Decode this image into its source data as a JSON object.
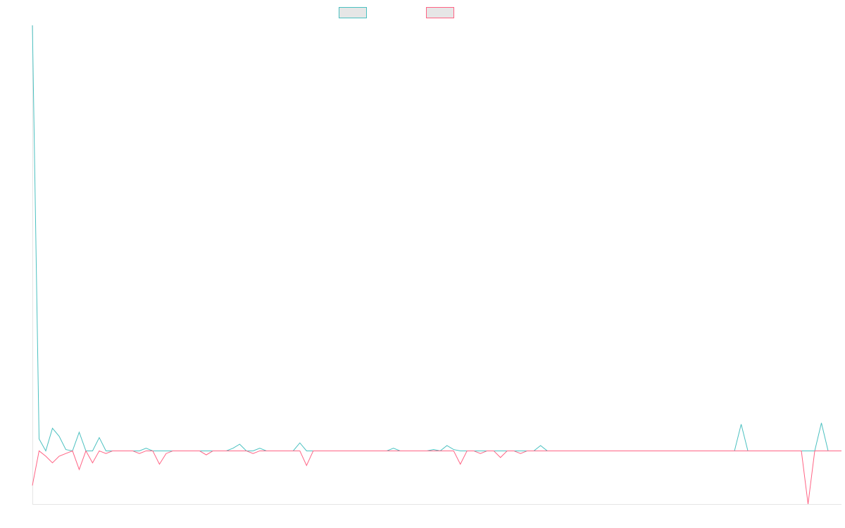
{
  "chart_data": {
    "type": "line",
    "title": "",
    "xlabel": "",
    "ylabel": "",
    "grid": false,
    "legend_placement": "top-center",
    "ylim": [
      -2,
      16
    ],
    "x": [
      0,
      1,
      2,
      3,
      4,
      5,
      6,
      7,
      8,
      9,
      10,
      11,
      12,
      13,
      14,
      15,
      16,
      17,
      18,
      19,
      20,
      21,
      22,
      23,
      24,
      25,
      26,
      27,
      28,
      29,
      30,
      31,
      32,
      33,
      34,
      35,
      36,
      37,
      38,
      39,
      40,
      41,
      42,
      43,
      44,
      45,
      46,
      47,
      48,
      49,
      50,
      51,
      52,
      53,
      54,
      55,
      56,
      57,
      58,
      59,
      60,
      61,
      62,
      63,
      64,
      65,
      66,
      67,
      68,
      69,
      70,
      71,
      72,
      73,
      74,
      75,
      76,
      77,
      78,
      79,
      80,
      81,
      82,
      83,
      84,
      85,
      86,
      87,
      88,
      89,
      90,
      91,
      92,
      93,
      94,
      95,
      96,
      97,
      98,
      99,
      100,
      101,
      102,
      103,
      104,
      105,
      106,
      107,
      108,
      109,
      110,
      111,
      112,
      113,
      114,
      115,
      116,
      117,
      118,
      119,
      120,
      121
    ],
    "series": [
      {
        "color": "#4bc0c0",
        "values": [
          16,
          0.45,
          0,
          0.85,
          0.55,
          0.05,
          0,
          0.7,
          0,
          0,
          0.5,
          0,
          0,
          0,
          0,
          0,
          0,
          0.1,
          0,
          0,
          0,
          0,
          0,
          0,
          0,
          0,
          0,
          0,
          0,
          0,
          0.1,
          0.25,
          0,
          0,
          0.1,
          0,
          0,
          0,
          0,
          0,
          0.3,
          0,
          0,
          0,
          0,
          0,
          0,
          0,
          0,
          0,
          0,
          0,
          0,
          0,
          0.1,
          0,
          0,
          0,
          0,
          0,
          0.05,
          0,
          0.2,
          0.05,
          0,
          0,
          0,
          0,
          0,
          0,
          0,
          0,
          0,
          0,
          0,
          0,
          0.2,
          0,
          0,
          0,
          0,
          0,
          0,
          0,
          0,
          0,
          0,
          0,
          0,
          0,
          0,
          0,
          0,
          0,
          0,
          0,
          0,
          0,
          0,
          0,
          0,
          0,
          0,
          0,
          0,
          0,
          1,
          0,
          0,
          0,
          0,
          0,
          0,
          0,
          0,
          0,
          0,
          0,
          1.05,
          0,
          0,
          0
        ]
      },
      {
        "color": "#ff6384",
        "values": [
          -1.3,
          0,
          -0.2,
          -0.45,
          -0.2,
          -0.1,
          0,
          -0.7,
          0,
          -0.45,
          0,
          -0.1,
          0,
          0,
          0,
          0,
          -0.1,
          0,
          0,
          -0.5,
          -0.1,
          0,
          0,
          0,
          0,
          0,
          -0.15,
          0,
          0,
          0,
          0,
          0,
          0,
          -0.1,
          0,
          0,
          0,
          0,
          0,
          0,
          0,
          -0.55,
          0,
          0,
          0,
          0,
          0,
          0,
          0,
          0,
          0,
          0,
          0,
          0,
          0,
          0,
          0,
          0,
          0,
          0,
          0,
          0,
          0,
          0,
          -0.5,
          0,
          0,
          -0.1,
          0,
          0,
          -0.25,
          0,
          0,
          -0.1,
          0,
          0,
          0,
          0,
          0,
          0,
          0,
          0,
          0,
          0,
          0,
          0,
          0,
          0,
          0,
          0,
          0,
          0,
          0,
          0,
          0,
          0,
          0,
          0,
          0,
          0,
          0,
          0,
          0,
          0,
          0,
          0,
          0,
          0,
          0,
          0,
          0,
          0,
          0,
          0,
          0,
          0,
          -2,
          0,
          0,
          0,
          0,
          0
        ]
      }
    ]
  }
}
